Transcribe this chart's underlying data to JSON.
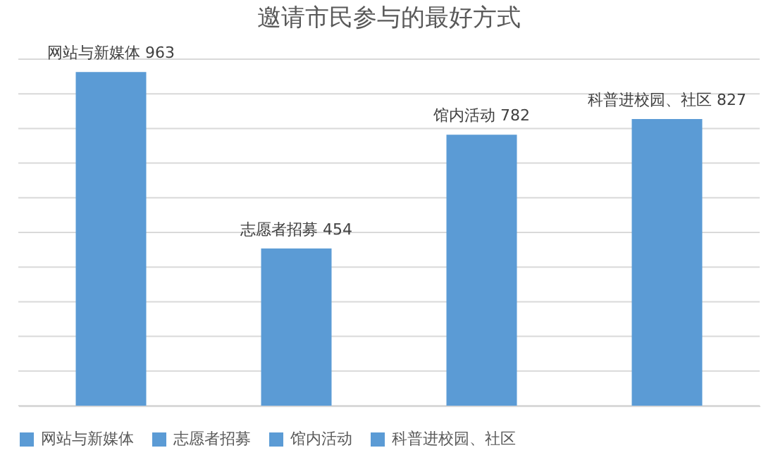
{
  "chart_data": {
    "type": "bar",
    "title": "邀请市民参与的最好方式",
    "categories": [
      null,
      null,
      null,
      null
    ],
    "series": [
      {
        "name": "网站与新媒体",
        "color": "#5b9bd5",
        "values": [
          963,
          null,
          null,
          null
        ],
        "value_labels": [
          "网站与新媒体 963",
          null,
          null,
          null
        ]
      },
      {
        "name": "志愿者招募",
        "color": "#5b9bd5",
        "values": [
          null,
          454,
          null,
          null
        ],
        "value_labels": [
          null,
          "志愿者招募 454",
          null,
          null
        ]
      },
      {
        "name": "馆内活动",
        "color": "#5b9bd5",
        "values": [
          null,
          null,
          782,
          null
        ],
        "value_labels": [
          null,
          null,
          "馆内活动 782",
          null
        ]
      },
      {
        "name": "科普进校园、社区",
        "color": "#5b9bd5",
        "values": [
          null,
          null,
          null,
          827
        ],
        "value_labels": [
          null,
          null,
          null,
          "科普进校园、社区 827"
        ]
      }
    ],
    "stacked": true,
    "ylim": [
      0,
      1000
    ],
    "yticks": [
      {
        "value": 0,
        "label": null
      },
      {
        "value": 100,
        "label": null
      },
      {
        "value": 200,
        "label": null
      },
      {
        "value": 300,
        "label": null
      },
      {
        "value": 400,
        "label": null
      },
      {
        "value": 500,
        "label": null
      },
      {
        "value": 600,
        "label": null
      },
      {
        "value": 700,
        "label": null
      },
      {
        "value": 800,
        "label": null
      },
      {
        "value": 900,
        "label": null
      },
      {
        "value": 1000,
        "label": null
      }
    ],
    "grid": "y",
    "legend": "bottom",
    "tick_labels": false
  }
}
